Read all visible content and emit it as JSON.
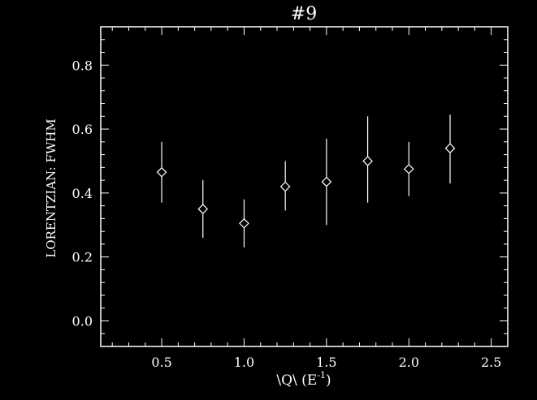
{
  "colors": {
    "background": "#000000",
    "foreground": "#ffffff"
  },
  "chart_data": {
    "type": "scatter",
    "title": "#9",
    "xlabel": "\\Q\\ (E",
    "xlabel_superscript": "-1",
    "xlabel_suffix": ")",
    "ylabel": "LORENTZIAN: FWHM",
    "xlim": [
      0.13,
      2.6
    ],
    "ylim": [
      -0.08,
      0.92
    ],
    "xticks": [
      0.5,
      1.0,
      1.5,
      2.0,
      2.5
    ],
    "xtick_labels": [
      "0.5",
      "1.0",
      "1.5",
      "2.0",
      "2.5"
    ],
    "yticks": [
      0.0,
      0.2,
      0.4,
      0.6,
      0.8
    ],
    "ytick_labels": [
      "0.0",
      "0.2",
      "0.4",
      "0.6",
      "0.8"
    ],
    "x_minor_step": 0.1,
    "y_minor_step": 0.04,
    "grid": false,
    "marker": "diamond",
    "series": [
      {
        "x": [
          0.5,
          0.75,
          1.0,
          1.25,
          1.5,
          1.75,
          2.0,
          2.25
        ],
        "y": [
          0.465,
          0.35,
          0.305,
          0.42,
          0.435,
          0.5,
          0.475,
          0.54
        ],
        "err_low": [
          0.37,
          0.26,
          0.23,
          0.345,
          0.3,
          0.37,
          0.39,
          0.43
        ],
        "err_high": [
          0.56,
          0.44,
          0.38,
          0.5,
          0.57,
          0.64,
          0.56,
          0.645
        ]
      }
    ]
  }
}
